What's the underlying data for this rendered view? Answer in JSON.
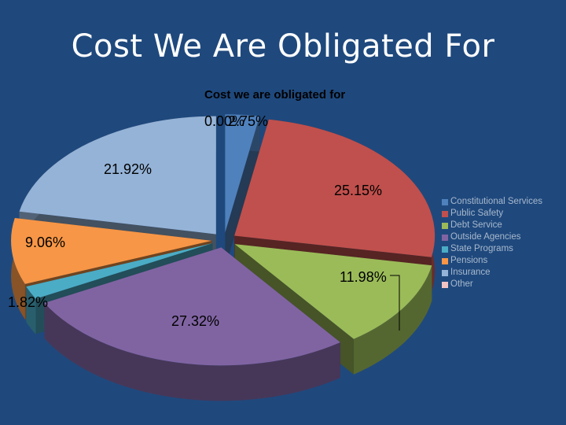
{
  "slide": {
    "title": "Cost We Are Obligated For"
  },
  "colors": {
    "background": "#1f497d"
  },
  "chart_data": {
    "type": "pie",
    "title": "Cost we are obligated for",
    "legend_position": "right",
    "three_d": true,
    "categories": [
      "Constitutional Services",
      "Public Safety",
      "Debt Service",
      "Outside Agencies",
      "State Programs",
      "Pensions",
      "Insurance",
      "Other"
    ],
    "values": [
      2.75,
      25.15,
      11.98,
      27.32,
      1.82,
      9.06,
      21.92,
      0.0
    ],
    "data_labels": [
      "2.75%",
      "25.15%",
      "11.98%",
      "27.32%",
      "1.82%",
      "9.06%",
      "21.92%",
      "0.00%"
    ],
    "colors": [
      "#4f81bd",
      "#c0504d",
      "#9bbb59",
      "#8064a2",
      "#4bacc6",
      "#f79646",
      "#95b3d7",
      "#f2c3c2"
    ]
  }
}
